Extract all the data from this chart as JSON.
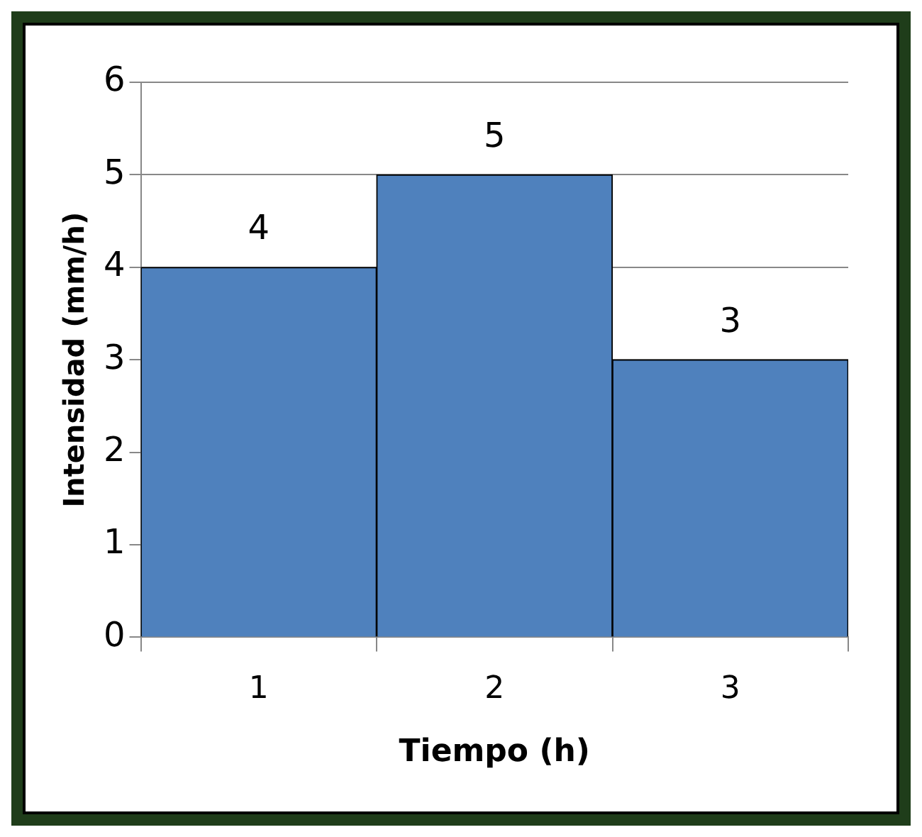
{
  "chart_data": {
    "type": "bar",
    "xlabel": "Tiempo (h)",
    "ylabel": "Intensidad (mm/h)",
    "categories": [
      "1",
      "2",
      "3"
    ],
    "values": [
      4,
      5,
      3
    ],
    "color": "#4f81bd",
    "ylim": [
      0,
      6
    ],
    "yticks": [
      0,
      1,
      2,
      3,
      4,
      5,
      6
    ],
    "grid": "y",
    "data_labels": true,
    "legend": false
  }
}
